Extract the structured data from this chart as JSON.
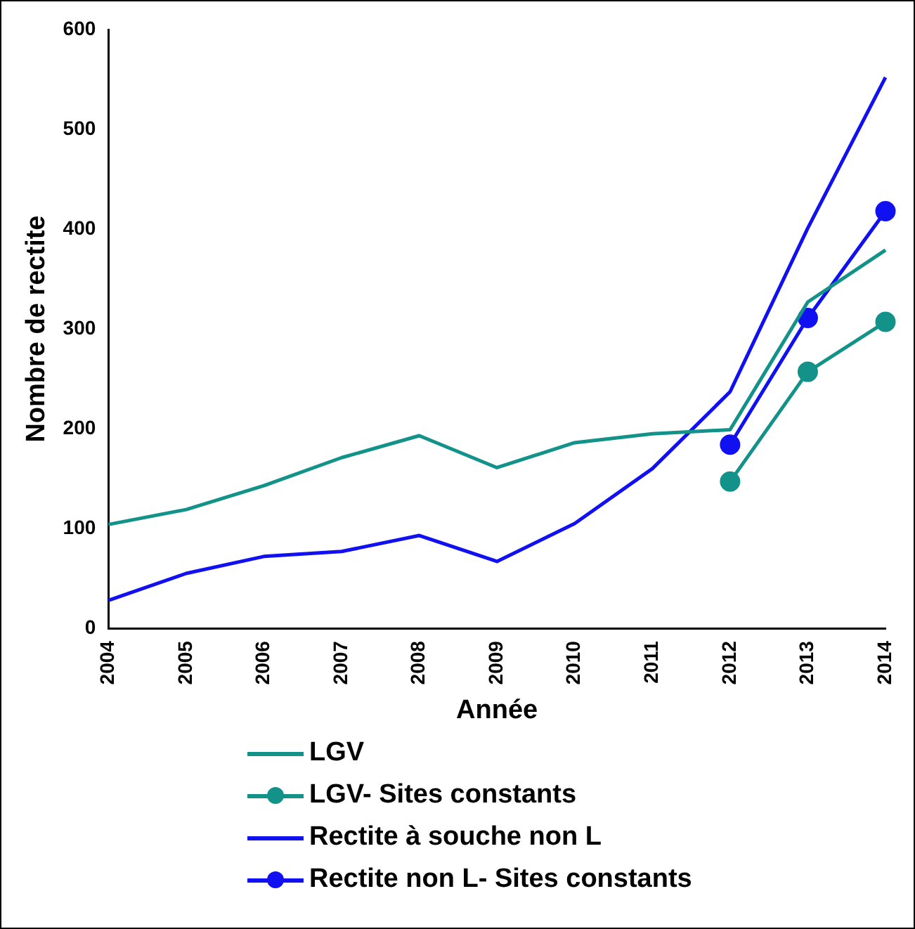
{
  "chart_data": {
    "type": "line",
    "xlabel": "Année",
    "ylabel": "Nombre de rectite",
    "categories": [
      "2004",
      "2005",
      "2006",
      "2007",
      "2008",
      "2009",
      "2010",
      "2011",
      "2012",
      "2013",
      "2014"
    ],
    "series": [
      {
        "name": "LGV",
        "color": "#13928a",
        "marker": "none",
        "values": [
          104,
          119,
          143,
          171,
          193,
          161,
          186,
          195,
          199,
          327,
          379
        ]
      },
      {
        "name": "LGV- Sites constants",
        "color": "#13928a",
        "marker": "circle",
        "values": [
          null,
          null,
          null,
          null,
          null,
          null,
          null,
          null,
          147,
          257,
          307
        ]
      },
      {
        "name": "Rectite à souche non L",
        "color": "#1010f0",
        "marker": "none",
        "values": [
          28,
          55,
          72,
          77,
          93,
          67,
          105,
          160,
          237,
          401,
          552
        ]
      },
      {
        "name": "Rectite non L- Sites constants",
        "color": "#1010f0",
        "marker": "circle",
        "values": [
          null,
          null,
          null,
          null,
          null,
          null,
          null,
          null,
          184,
          311,
          418
        ]
      }
    ],
    "ylim": [
      0,
      600
    ],
    "yticks": [
      0,
      100,
      200,
      300,
      400,
      500,
      600
    ],
    "grid": false,
    "legend": "bottom",
    "line_style": "solid"
  }
}
